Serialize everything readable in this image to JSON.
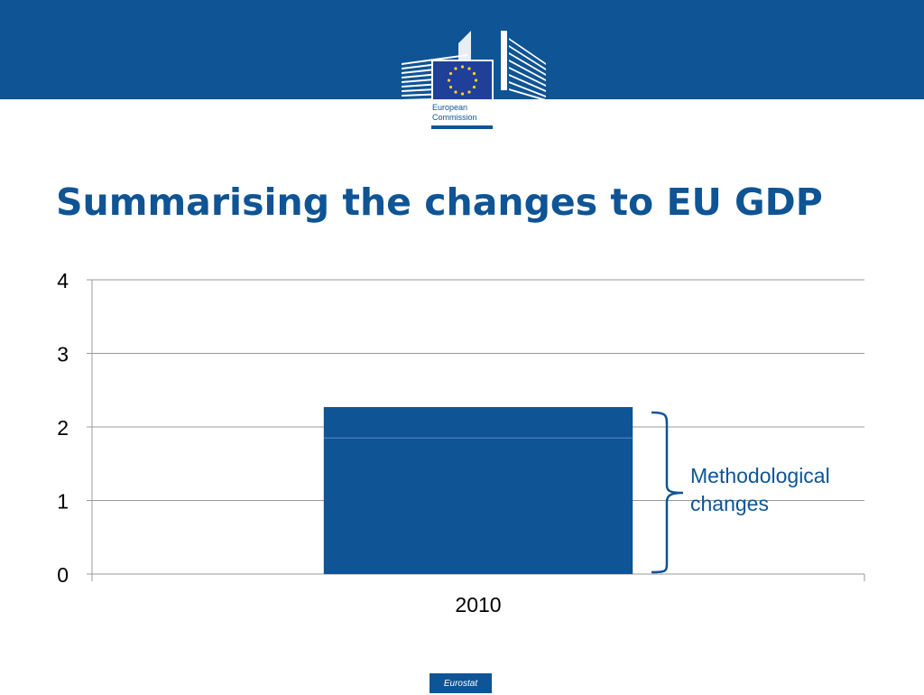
{
  "slide": {
    "title": "Summarising the changes to EU GDP",
    "logo_text": [
      "European",
      "Commission"
    ],
    "footer": "Eurostat"
  },
  "chart_data": {
    "type": "bar",
    "categories": [
      "2010"
    ],
    "series": [
      {
        "values": [
          1.85
        ]
      },
      {
        "values": [
          0.42
        ]
      }
    ],
    "ylim": [
      0,
      4
    ],
    "yticks": [
      0,
      1,
      2,
      3,
      4
    ],
    "grid": true,
    "annotation": {
      "text": [
        "Methodological",
        "changes"
      ]
    }
  },
  "colors": {
    "brand": "#0f5494",
    "gold": "#ffd617"
  }
}
